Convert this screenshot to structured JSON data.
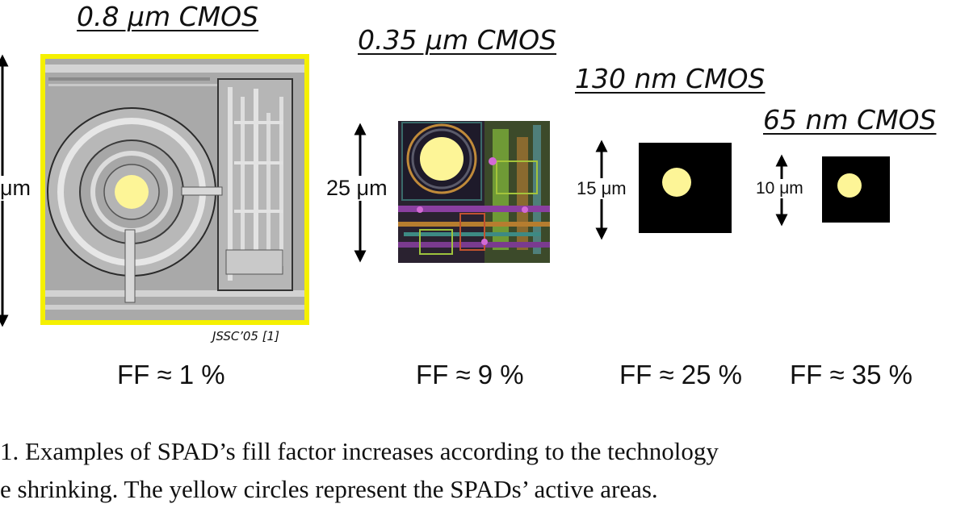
{
  "panels": [
    {
      "title": "0.8 μm CMOS",
      "dimension": "μm",
      "ff": "FF ≈ 1 %",
      "reference": "JSSC’05 [1]"
    },
    {
      "title": "0.35 μm CMOS",
      "dimension": "25 μm",
      "ff": "FF ≈ 9 %"
    },
    {
      "title": "130 nm CMOS",
      "dimension": "15 μm",
      "ff": "FF ≈ 25 %"
    },
    {
      "title": "65 nm CMOS",
      "dimension": "10 μm",
      "ff": "FF ≈ 35 %"
    }
  ],
  "caption": {
    "line1": "1.    Examples of SPAD’s fill factor increases according to the technology",
    "line2": "e shrinking. The yellow circles represent the SPADs’ active areas."
  },
  "colors": {
    "spad_active_area": "#fdf597",
    "chip_highlight_border": "#f5f000",
    "black_pixel": "#000000"
  }
}
